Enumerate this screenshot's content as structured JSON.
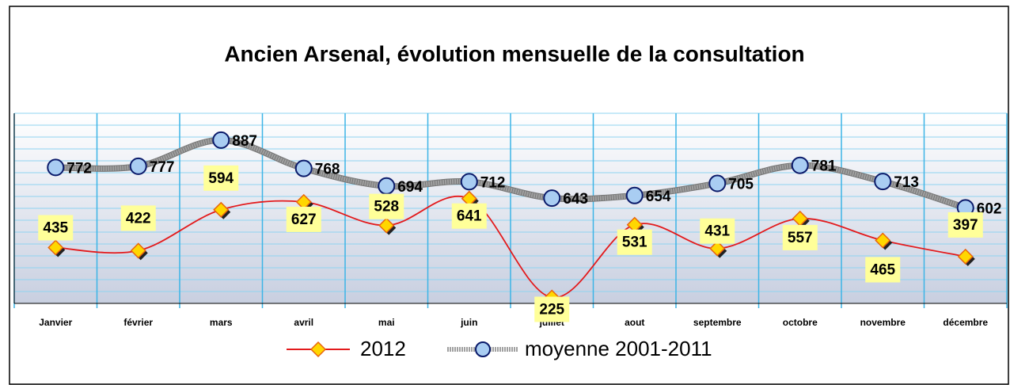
{
  "chart_data": {
    "type": "line",
    "title": "Ancien Arsenal, évolution mensuelle de la consultation",
    "categories": [
      "Janvier",
      "février",
      "mars",
      "avril",
      "mai",
      "juin",
      "juillet",
      "aout",
      "septembre",
      "octobre",
      "novembre",
      "décembre"
    ],
    "series": [
      {
        "name": "2012",
        "color": "#e31a1c",
        "values": [
          435,
          422,
          594,
          627,
          528,
          641,
          225,
          531,
          431,
          557,
          465,
          397
        ]
      },
      {
        "name": "moyenne 2001-2011",
        "color": "#a0a0a0",
        "values": [
          772,
          777,
          887,
          768,
          694,
          712,
          643,
          654,
          705,
          781,
          713,
          602
        ]
      }
    ],
    "ylim": [
      200,
      1000
    ],
    "yticks": [
      200,
      250,
      300,
      350,
      400,
      450,
      500,
      550,
      600,
      650,
      700,
      750,
      800,
      850,
      900,
      950,
      1000
    ],
    "grid": true
  }
}
